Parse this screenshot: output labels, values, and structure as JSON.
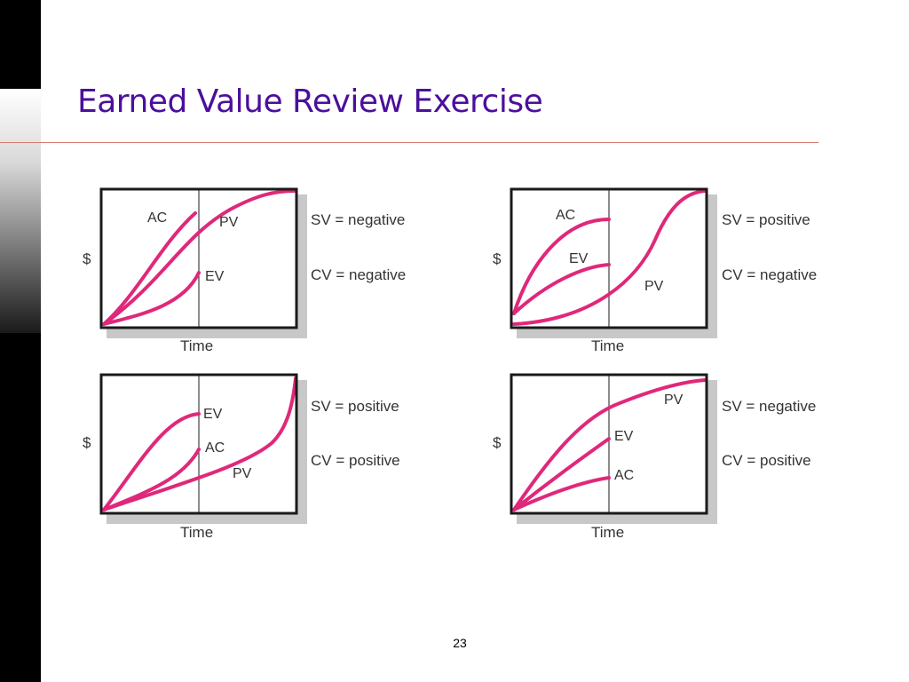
{
  "slide": {
    "title": "Earned Value Review Exercise",
    "page_number": "23"
  },
  "colors": {
    "title": "#4b0f9c",
    "curve": "#e0287a",
    "frame": "#1a1a1a",
    "shadow": "#c8c8c8",
    "rule": "#d97a6e"
  },
  "panels": [
    {
      "y_label": "$",
      "x_label": "Time",
      "curves": [
        {
          "name": "AC"
        },
        {
          "name": "PV"
        },
        {
          "name": "EV"
        }
      ],
      "sv": "SV = negative",
      "cv": "CV = negative"
    },
    {
      "y_label": "$",
      "x_label": "Time",
      "curves": [
        {
          "name": "AC"
        },
        {
          "name": "EV"
        },
        {
          "name": "PV"
        }
      ],
      "sv": "SV = positive",
      "cv": "CV = negative"
    },
    {
      "y_label": "$",
      "x_label": "Time",
      "curves": [
        {
          "name": "EV"
        },
        {
          "name": "AC"
        },
        {
          "name": "PV"
        }
      ],
      "sv": "SV = positive",
      "cv": "CV = positive"
    },
    {
      "y_label": "$",
      "x_label": "Time",
      "curves": [
        {
          "name": "PV"
        },
        {
          "name": "EV"
        },
        {
          "name": "AC"
        }
      ],
      "sv": "SV = negative",
      "cv": "CV = positive"
    }
  ]
}
